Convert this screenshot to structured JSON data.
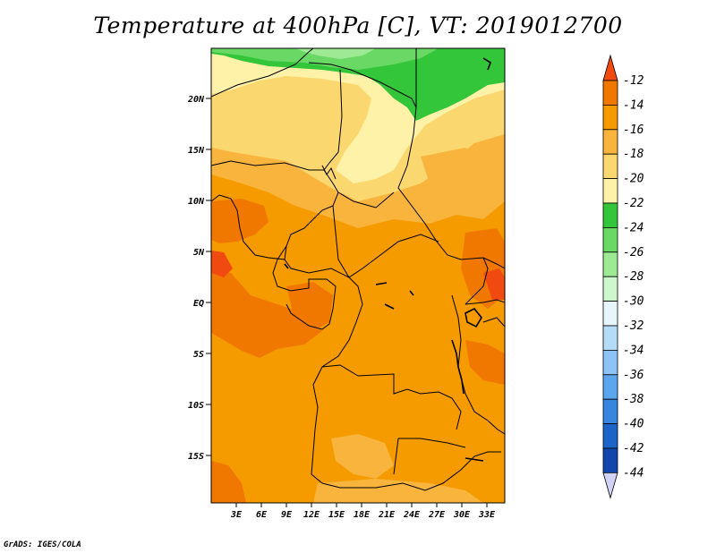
{
  "title": "Temperature at 400hPa [C], VT: 2019012700",
  "credit": "GrADS: IGES/COLA",
  "map": {
    "lat_ticks": [
      "20N",
      "15N",
      "10N",
      "5N",
      "EQ",
      "5S",
      "10S",
      "15S"
    ],
    "lon_ticks": [
      "3E",
      "6E",
      "9E",
      "12E",
      "15E",
      "18E",
      "21E",
      "24E",
      "27E",
      "30E",
      "33E"
    ]
  },
  "colorbar": {
    "levels": [
      "-12",
      "-14",
      "-16",
      "-18",
      "-20",
      "-22",
      "-24",
      "-26",
      "-28",
      "-30",
      "-32",
      "-34",
      "-36",
      "-38",
      "-40",
      "-42",
      "-44"
    ],
    "colors": [
      "#f04a10",
      "#f07800",
      "#f59b00",
      "#f8b43c",
      "#fbd770",
      "#fdf2a8",
      "#33c63a",
      "#6ad865",
      "#9eea94",
      "#cdf7cd",
      "#e6f6fb",
      "#b4dcf8",
      "#8dc3f5",
      "#5ca6ee",
      "#3686e0",
      "#1d64c8",
      "#1346ac",
      "#0c1e80",
      "#d2d2f5"
    ]
  }
}
